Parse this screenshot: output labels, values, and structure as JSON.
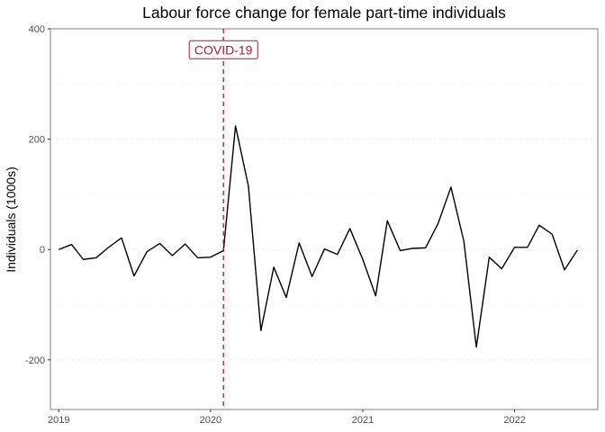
{
  "chart_data": {
    "type": "line",
    "title": "Labour force change for female part-time individuals",
    "xlabel": "",
    "ylabel": "Individuals (1000s)",
    "xlim": [
      "2018-12-12",
      "2022-07-20"
    ],
    "ylim": [
      -290,
      400
    ],
    "y_ticks": [
      -200,
      0,
      200,
      400
    ],
    "y_tick_labels": [
      "-200",
      "0",
      "200",
      "400"
    ],
    "x_ticks": [
      "2019-01-01",
      "2020-01-01",
      "2021-01-01",
      "2022-01-01"
    ],
    "x_tick_labels": [
      "2019",
      "2020",
      "2021",
      "2022"
    ],
    "grid": true,
    "legend": "none",
    "line_color": "#000000",
    "series": [
      {
        "x": [
          "2019-01-01",
          "2019-02-01",
          "2019-03-01",
          "2019-04-01",
          "2019-05-01",
          "2019-06-01",
          "2019-07-01",
          "2019-08-01",
          "2019-09-01",
          "2019-10-01",
          "2019-11-01",
          "2019-12-01",
          "2020-01-01",
          "2020-02-01",
          "2020-03-01",
          "2020-04-01",
          "2020-05-01",
          "2020-06-01",
          "2020-07-01",
          "2020-08-01",
          "2020-09-01",
          "2020-10-01",
          "2020-11-01",
          "2020-12-01",
          "2021-01-01",
          "2021-02-01",
          "2021-03-01",
          "2021-04-01",
          "2021-05-01",
          "2021-06-01",
          "2021-07-01",
          "2021-08-01",
          "2021-09-01",
          "2021-10-01",
          "2021-11-01",
          "2021-12-01",
          "2022-01-01",
          "2022-02-01",
          "2022-03-01",
          "2022-04-01",
          "2022-05-01",
          "2022-06-01"
        ],
        "values": [
          0,
          9,
          -18,
          -15,
          4,
          21,
          -48,
          -4,
          11,
          -11,
          10,
          -15,
          -14,
          -2,
          224,
          115,
          -147,
          -32,
          -87,
          12,
          -49,
          1,
          -9,
          38,
          -18,
          -84,
          52,
          -2,
          2,
          3,
          47,
          113,
          15,
          -177,
          -14,
          -35,
          4,
          4,
          44,
          28,
          -37,
          -1
        ]
      }
    ],
    "annotations": [
      {
        "type": "vline",
        "x": "2020-02-01",
        "color": "#b2182b",
        "linestyle": "dashed",
        "label": "COVID-19",
        "label_y": 362
      }
    ]
  }
}
